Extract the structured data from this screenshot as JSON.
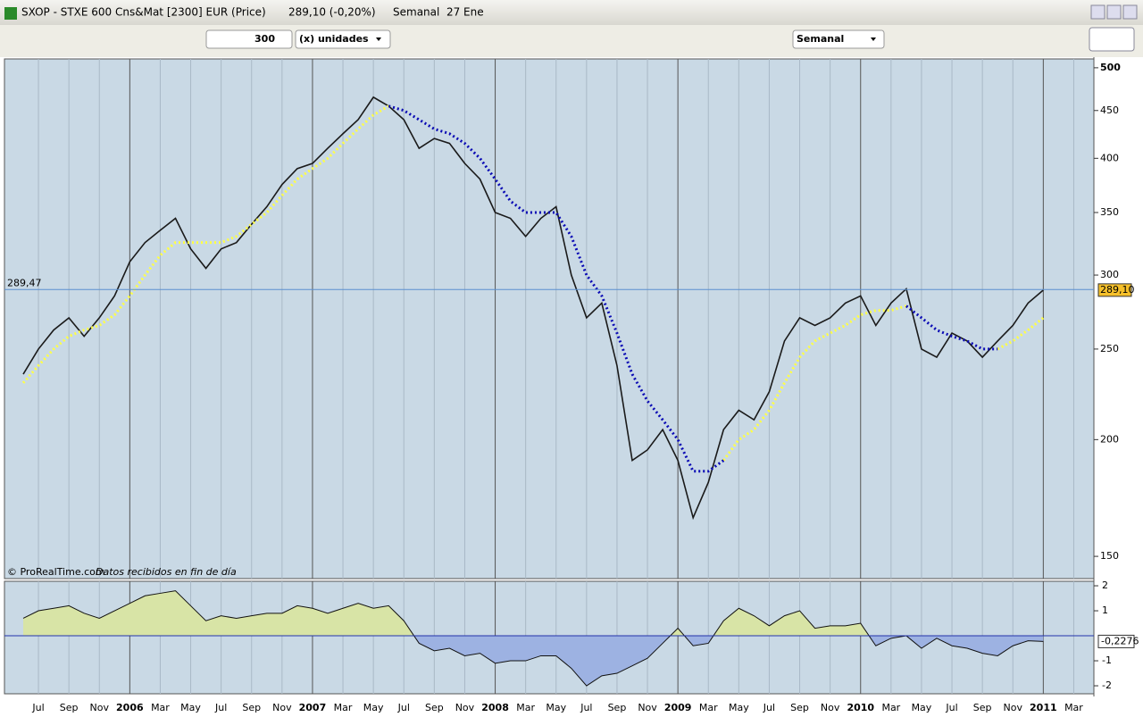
{
  "window": {
    "title": "SXOP - STXE 600 Cns&Mat [2300] EUR (Price)",
    "quote": "289,10 (-0,20%)",
    "period": "Semanal  27 Ene"
  },
  "toolbar": {
    "units_value": "300",
    "units_label": "(x) unidades",
    "interval": "Semanal"
  },
  "footer": {
    "source": "© ProRealTime.com",
    "note": "Datos recibidos en fin de día"
  },
  "chart_data": [
    {
      "type": "line",
      "log_scale": true,
      "categories": [
        null,
        "Jul",
        null,
        "Sep",
        null,
        "Nov",
        null,
        "2006",
        null,
        "Mar",
        null,
        "May",
        null,
        "Jul",
        null,
        "Sep",
        null,
        "Nov",
        null,
        "2007",
        null,
        "Mar",
        null,
        "May",
        null,
        "Jul",
        null,
        "Sep",
        null,
        "Nov",
        null,
        "2008",
        null,
        "Mar",
        null,
        "May",
        null,
        "Jul",
        null,
        "Sep",
        null,
        "Nov",
        null,
        "2009",
        null,
        "Mar",
        null,
        "May",
        null,
        "Jul",
        null,
        "Sep",
        null,
        "Nov",
        null,
        "2010",
        null,
        "Mar",
        null,
        "May",
        null,
        "Jul",
        null,
        "Sep",
        null,
        "Nov",
        null,
        "2011",
        null,
        "Mar"
      ],
      "series": [
        {
          "color": "#1a1a1a",
          "values": [
            235,
            250,
            262,
            270,
            258,
            270,
            285,
            310,
            325,
            335,
            345,
            320,
            305,
            320,
            325,
            340,
            355,
            375,
            390,
            395,
            410,
            425,
            440,
            465,
            455,
            440,
            410,
            420,
            415,
            395,
            380,
            350,
            345,
            330,
            345,
            355,
            300,
            270,
            280,
            240,
            190,
            195,
            205,
            190,
            165,
            180,
            205,
            215,
            210,
            225,
            255,
            270,
            265,
            270,
            280,
            285,
            265,
            280,
            290,
            250,
            245,
            260,
            255,
            245,
            255,
            265,
            280,
            289.1,
            null,
            null
          ]
        },
        {
          "color": "#ffff44",
          "values": [
            230,
            240,
            250,
            258,
            262,
            265,
            272,
            285,
            300,
            315,
            325,
            325,
            325,
            325,
            330,
            340,
            350,
            365,
            380,
            390,
            400,
            415,
            430,
            445,
            455,
            null,
            null,
            null,
            null,
            null,
            null,
            null,
            null,
            null,
            null,
            null,
            null,
            null,
            null,
            null,
            null,
            null,
            null,
            null,
            null,
            null,
            190,
            200,
            205,
            215,
            230,
            245,
            255,
            260,
            265,
            272,
            275,
            275,
            278,
            null,
            null,
            null,
            null,
            null,
            250,
            255,
            262,
            270,
            null,
            null
          ]
        },
        {
          "color": "#0a0ab4",
          "values": [
            null,
            null,
            null,
            null,
            null,
            null,
            null,
            null,
            null,
            null,
            null,
            null,
            null,
            null,
            null,
            null,
            null,
            null,
            null,
            null,
            null,
            null,
            null,
            null,
            455,
            450,
            440,
            430,
            425,
            415,
            400,
            380,
            360,
            350,
            350,
            350,
            330,
            300,
            285,
            260,
            235,
            220,
            210,
            200,
            185,
            185,
            190,
            null,
            null,
            null,
            null,
            null,
            null,
            null,
            null,
            null,
            null,
            null,
            278,
            270,
            262,
            258,
            255,
            250,
            250,
            null,
            null,
            null,
            null,
            null
          ]
        }
      ],
      "ylim": [
        142,
        511
      ],
      "yticks": [
        150,
        200,
        250,
        300,
        350,
        400,
        450,
        500
      ],
      "last_price": {
        "value": 289.1,
        "label": "289,10"
      },
      "crosshair": {
        "value": 289.47,
        "label": "289,47"
      }
    },
    {
      "type": "area",
      "values": [
        0.7,
        1.0,
        1.1,
        1.2,
        0.9,
        0.7,
        1.0,
        1.3,
        1.6,
        1.7,
        1.8,
        1.2,
        0.6,
        0.8,
        0.7,
        0.8,
        0.9,
        0.9,
        1.2,
        1.1,
        0.9,
        1.1,
        1.3,
        1.1,
        1.2,
        0.6,
        -0.3,
        -0.6,
        -0.5,
        -0.8,
        -0.7,
        -1.1,
        -1.0,
        -1.0,
        -0.8,
        -0.8,
        -1.3,
        -2.0,
        -1.6,
        -1.5,
        -1.2,
        -0.9,
        -0.3,
        0.3,
        -0.4,
        -0.3,
        0.6,
        1.1,
        0.8,
        0.4,
        0.8,
        1.0,
        0.3,
        0.4,
        0.4,
        0.5,
        -0.4,
        -0.1,
        0.0,
        -0.5,
        -0.1,
        -0.4,
        -0.5,
        -0.7,
        -0.8,
        -0.4,
        -0.2,
        -0.2276,
        null,
        null
      ],
      "value_labels": [
        null,
        null,
        null,
        null,
        null,
        null,
        null,
        null,
        null,
        null,
        null,
        null,
        null,
        null,
        null,
        null,
        null,
        null,
        null,
        null,
        null,
        null,
        null,
        null,
        null,
        null,
        null,
        null,
        null,
        null,
        null,
        null,
        null,
        null,
        null,
        null,
        null,
        null,
        null,
        null,
        null,
        null,
        null,
        null,
        null,
        null,
        null,
        null,
        null,
        null,
        null,
        null,
        null,
        null,
        null,
        null,
        null,
        null,
        null,
        null,
        null,
        null,
        null,
        null,
        null,
        null,
        null,
        "-0,2276",
        null,
        null
      ],
      "colors": {
        "positive": "#d8e4a6",
        "negative": "#9db2e2",
        "line": "#111111",
        "zero": "#2233aa"
      },
      "ylim": [
        -2.32,
        2.18
      ],
      "yticks": [
        -2,
        -1,
        1,
        2
      ]
    }
  ]
}
